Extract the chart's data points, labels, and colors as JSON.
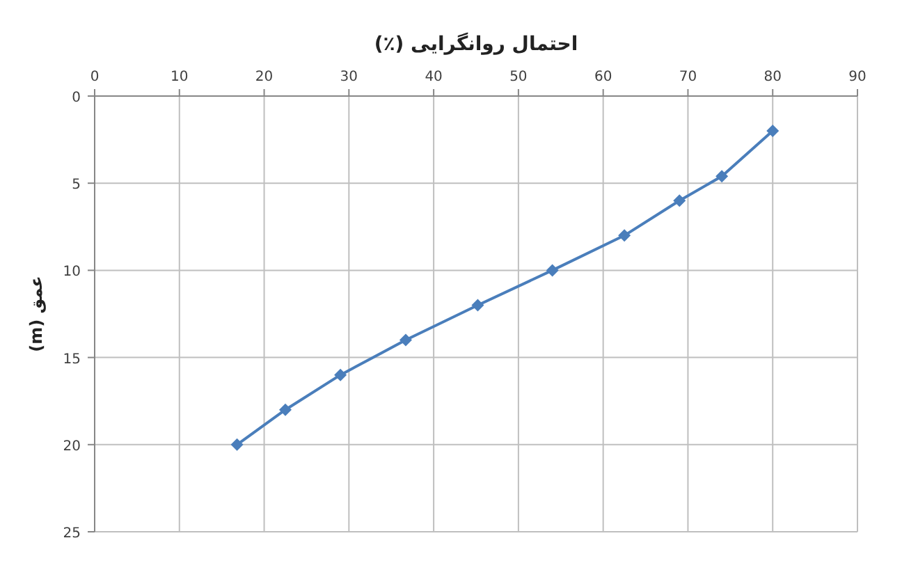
{
  "chart_data": {
    "type": "line",
    "title": "احتمال روانگرایی (٪)",
    "ylabel": "عمق (m)",
    "x": [
      16.8,
      22.5,
      29,
      36.7,
      45.2,
      54,
      62.5,
      69,
      74,
      80
    ],
    "series": [
      {
        "color": "#4a7ebb",
        "values": [
          20,
          18,
          16,
          14,
          12,
          10,
          8,
          6,
          4.6,
          2
        ]
      }
    ],
    "xlim": [
      0,
      90
    ],
    "xticks": [
      0,
      10,
      20,
      30,
      40,
      50,
      60,
      70,
      80,
      90
    ],
    "ylim": [
      25,
      0
    ],
    "yticks": [
      0,
      5,
      10,
      15,
      20,
      25
    ],
    "grid": true,
    "marker": "diamond",
    "line_style": "solid"
  }
}
